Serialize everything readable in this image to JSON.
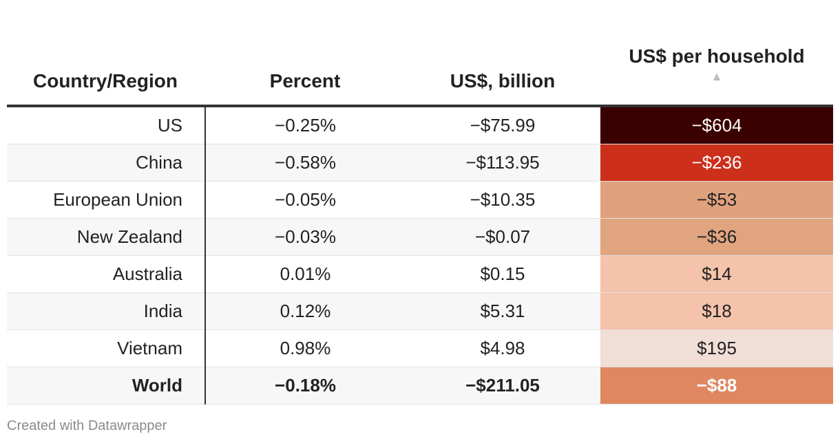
{
  "chart_data": {
    "type": "table",
    "columns": [
      "Country/Region",
      "Percent",
      "US$, billion",
      "US$ per household"
    ],
    "sort_indicator": "▲",
    "rows": [
      {
        "country": "US",
        "percent": "−0.25%",
        "billion": "−$75.99",
        "per_household": "−$604",
        "per_household_value": -604,
        "color": "#3b0000",
        "text_color": "#ffffff"
      },
      {
        "country": "China",
        "percent": "−0.58%",
        "billion": "−$113.95",
        "per_household": "−$236",
        "per_household_value": -236,
        "color": "#cc2f1a",
        "text_color": "#ffffff"
      },
      {
        "country": "European Union",
        "percent": "−0.05%",
        "billion": "−$10.35",
        "per_household": "−$53",
        "per_household_value": -53,
        "color": "#e0a27d",
        "text_color": "#222222"
      },
      {
        "country": "New Zealand",
        "percent": "−0.03%",
        "billion": "−$0.07",
        "per_household": "−$36",
        "per_household_value": -36,
        "color": "#e0a57f",
        "text_color": "#222222"
      },
      {
        "country": "Australia",
        "percent": "0.01%",
        "billion": "$0.15",
        "per_household": "$14",
        "per_household_value": 14,
        "color": "#f5c3ab",
        "text_color": "#222222"
      },
      {
        "country": "India",
        "percent": "0.12%",
        "billion": "$5.31",
        "per_household": "$18",
        "per_household_value": 18,
        "color": "#f5c3ab",
        "text_color": "#222222"
      },
      {
        "country": "Vietnam",
        "percent": "0.98%",
        "billion": "$4.98",
        "per_household": "$195",
        "per_household_value": 195,
        "color": "#f0ded7",
        "text_color": "#222222"
      },
      {
        "country": "World",
        "percent": "−0.18%",
        "billion": "−$211.05",
        "per_household": "−$88",
        "per_household_value": -88,
        "color": "#de8760",
        "text_color": "#ffffff",
        "total": true
      }
    ]
  },
  "footer": "Created with Datawrapper"
}
